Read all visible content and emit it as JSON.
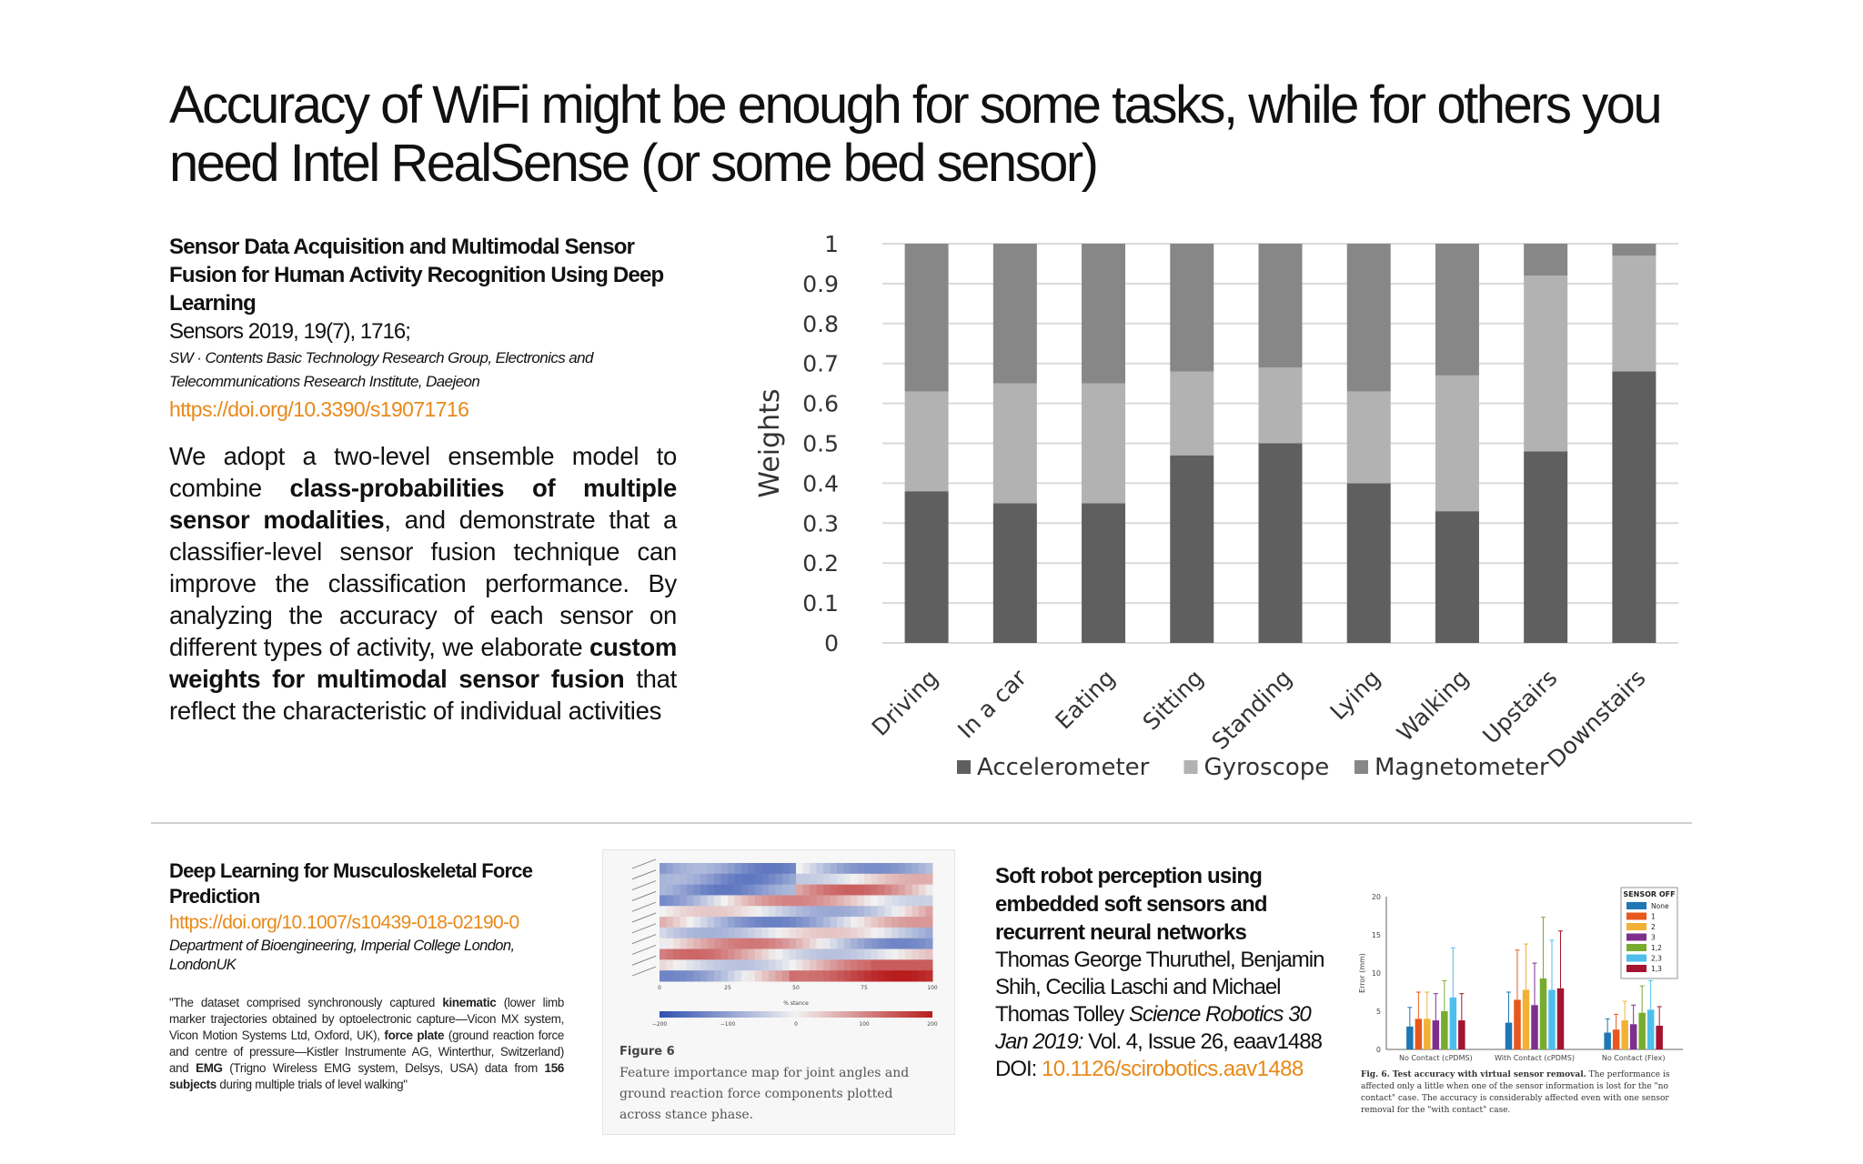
{
  "title": "Accuracy of WiFi might be enough for some tasks, while for others you need Intel RealSense (or some bed sensor)",
  "ref1": {
    "title": "Sensor Data Acquisition and Multimodal Sensor Fusion for Human Activity Recognition Using Deep Learning",
    "journal": "Sensors 2019, 19(7), 1716;",
    "affiliation": "SW · Contents Basic Technology Research Group, Electronics and Telecommunications Research Institute, Daejeon",
    "link": "https://doi.org/10.3390/s19071716",
    "desc_1": "We adopt a two-level ensemble model to combine ",
    "desc_b1": "class-probabilities of multiple sensor modalities",
    "desc_2": ", and demonstrate that a classifier-level sensor fusion technique can improve the classification performance. By analyzing the accuracy of each sensor on different types of activity, we elaborate ",
    "desc_b2": "custom weights for multimodal sensor fusion",
    "desc_3": " that reflect the characteristic of individual activities"
  },
  "chart_data": {
    "type": "bar",
    "stacked": true,
    "ylabel": "Weights",
    "ylim": [
      0,
      1
    ],
    "yticks": [
      "0",
      "0.1",
      "0.2",
      "0.3",
      "0.4",
      "0.5",
      "0.6",
      "0.7",
      "0.8",
      "0.9",
      "1"
    ],
    "categories": [
      "Driving",
      "In a car",
      "Eating",
      "Sitting",
      "Standing",
      "Lying",
      "Walking",
      "Upstairs",
      "Downstairs"
    ],
    "series": [
      {
        "name": "Accelerometer",
        "color": "#5f5f5f",
        "values": [
          0.38,
          0.35,
          0.35,
          0.47,
          0.5,
          0.4,
          0.33,
          0.48,
          0.68
        ]
      },
      {
        "name": "Gyroscope",
        "color": "#b2b2b2",
        "values": [
          0.25,
          0.3,
          0.3,
          0.21,
          0.19,
          0.23,
          0.34,
          0.44,
          0.29
        ]
      },
      {
        "name": "Magnetometer",
        "color": "#878787",
        "values": [
          0.37,
          0.35,
          0.35,
          0.32,
          0.31,
          0.37,
          0.33,
          0.08,
          0.03
        ]
      }
    ],
    "grid": true,
    "legend": "bottom"
  },
  "ref2": {
    "title": "Deep Learning for Musculoskeletal Force Prediction",
    "link": "https://doi.org/10.1007/s10439-018-02190-0",
    "affiliation": "Department of Bioengineering, Imperial College London, LondonUK",
    "q1": "\"The dataset comprised synchronously captured ",
    "qb1": "kinematic",
    "q2": " (lower limb marker trajectories obtained by optoelectronic capture—Vicon MX system, Vicon Motion Systems Ltd, Oxford, UK), ",
    "qb2": "force plate",
    "q3": " (ground reaction force and centre of pressure—Kistler Instrumente AG, Winterthur, Switzerland) and ",
    "qb3": "EMG",
    "q4": " (Trigno Wireless EMG system, Delsys, USA) data from ",
    "qb4": "156 subjects",
    "q5": " during multiple trials of level walking\""
  },
  "fig6": {
    "label": "Figure 6",
    "caption": "Feature importance map for joint angles and ground reaction force components plotted across stance phase.",
    "xaxis": "% stance",
    "xticks": [
      "0",
      "25",
      "50",
      "75",
      "100"
    ],
    "cbar_ticks": [
      "−200",
      "−100",
      "0",
      "100",
      "200"
    ]
  },
  "ref3": {
    "title": "Soft robot perception using embedded soft sensors and recurrent neural networks",
    "authors": "Thomas George Thuruthel, Benjamin Shih, Cecilia Laschi and Michael Thomas Tolley ",
    "journal_italic": "Science Robotics 30 Jan 2019:",
    "issue": " Vol. 4, Issue 26, eaav1488",
    "doi_prefix": "DOI: ",
    "doi_link": "10.1126/scirobotics.aav1488"
  },
  "fig_small": {
    "ylabel": "Error (mm)",
    "yticks": [
      "0",
      "5",
      "10",
      "15",
      "20"
    ],
    "groups": [
      "No Contact (cPDMS)",
      "With Contact (cPDMS)",
      "No Contact (Flex)"
    ],
    "legend_title": "SENSOR OFF",
    "legend": [
      "None",
      "1",
      "2",
      "3",
      "1,2",
      "2,3",
      "1,3"
    ],
    "colors": [
      "#1f77b4",
      "#e8571b",
      "#f2b134",
      "#7e2f8e",
      "#77ac30",
      "#4dbeee",
      "#a2142f"
    ],
    "values": [
      [
        3.0,
        4.0,
        4.0,
        3.8,
        5.0,
        6.8,
        3.8
      ],
      [
        3.5,
        6.5,
        7.8,
        5.8,
        9.3,
        7.8,
        8.0
      ],
      [
        2.2,
        2.6,
        3.8,
        3.3,
        4.8,
        5.2,
        3.1
      ]
    ],
    "errors": [
      [
        2.5,
        3.5,
        3.5,
        3.5,
        4.0,
        6.5,
        3.5
      ],
      [
        4.0,
        6.5,
        6.0,
        5.5,
        8.0,
        6.5,
        7.5
      ],
      [
        1.8,
        2.0,
        2.5,
        2.5,
        3.5,
        3.8,
        2.5
      ]
    ],
    "caption_bold": "Fig. 6. Test accuracy with virtual sensor removal.",
    "caption": " The performance is affected only a little when one of the sensor information is lost for the \"no contact\" case. The accuracy is considerably affected even with one sensor removal for the \"with contact\" case."
  }
}
